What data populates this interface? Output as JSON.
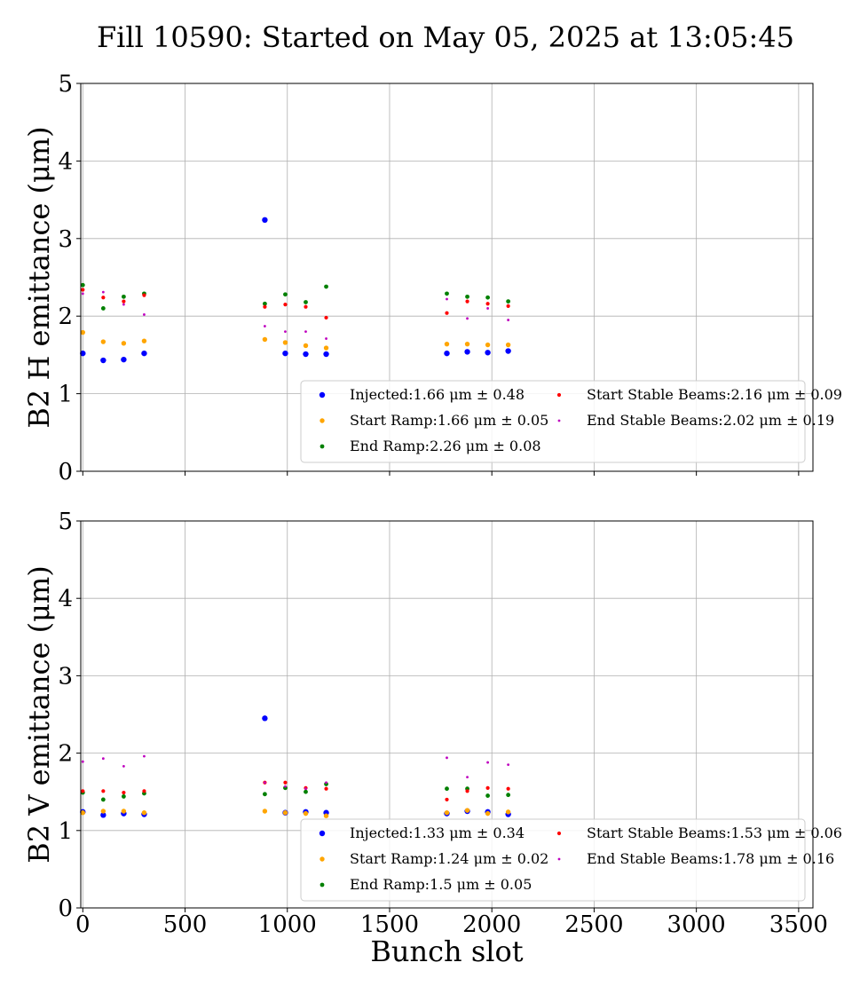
{
  "title": "Fill 10590: Started on May 05, 2025 at 13:05:45",
  "colors": {
    "Injected": "#0000ff",
    "Start Ramp": "#ffa500",
    "End Ramp": "#008000",
    "Start Stable Beams": "#ff0000",
    "End Stable Beams": "#bf00bf"
  },
  "chart_data": [
    {
      "type": "scatter",
      "ylabel": "B2 H emittance (μm)",
      "xlabel": "",
      "xlim": [
        -10,
        3570
      ],
      "ylim": [
        0,
        5
      ],
      "xticks": [
        0,
        500,
        1000,
        1500,
        2000,
        2500,
        3000,
        3500
      ],
      "yticks": [
        0,
        1,
        2,
        3,
        4,
        5
      ],
      "show_xtick_labels": false,
      "grid": true,
      "legend_placement": "lower-right",
      "series": [
        {
          "name": "Injected",
          "legend": "Injected:1.66 μm ± 0.48",
          "x": [
            0,
            100,
            200,
            300,
            890,
            990,
            1090,
            1190,
            1780,
            1880,
            1980,
            2080
          ],
          "y": [
            1.52,
            1.43,
            1.44,
            1.52,
            3.24,
            1.52,
            1.51,
            1.51,
            1.52,
            1.54,
            1.53,
            1.55
          ]
        },
        {
          "name": "Start Ramp",
          "legend": "Start Ramp:1.66 μm ± 0.05",
          "x": [
            0,
            100,
            200,
            300,
            890,
            990,
            1090,
            1190,
            1780,
            1880,
            1980,
            2080
          ],
          "y": [
            1.79,
            1.67,
            1.65,
            1.68,
            1.7,
            1.66,
            1.62,
            1.59,
            1.64,
            1.64,
            1.63,
            1.63
          ]
        },
        {
          "name": "End Ramp",
          "legend": "End Ramp:2.26 μm ± 0.08",
          "x": [
            0,
            100,
            200,
            300,
            890,
            990,
            1090,
            1190,
            1780,
            1880,
            1980,
            2080
          ],
          "y": [
            2.4,
            2.1,
            2.25,
            2.29,
            2.16,
            2.28,
            2.18,
            2.38,
            2.29,
            2.25,
            2.24,
            2.19
          ]
        },
        {
          "name": "Start Stable Beams",
          "legend": "Start Stable Beams:2.16 μm ± 0.09",
          "x": [
            0,
            100,
            200,
            300,
            890,
            990,
            1090,
            1190,
            1780,
            1880,
            1980,
            2080
          ],
          "y": [
            2.34,
            2.24,
            2.19,
            2.27,
            2.12,
            2.15,
            2.12,
            1.98,
            2.04,
            2.19,
            2.16,
            2.13
          ]
        },
        {
          "name": "End Stable Beams",
          "legend": "End Stable Beams:2.02 μm ± 0.19",
          "x": [
            0,
            100,
            200,
            300,
            890,
            990,
            1090,
            1190,
            1780,
            1880,
            1980,
            2080
          ],
          "y": [
            2.29,
            2.31,
            2.15,
            2.02,
            1.87,
            1.8,
            1.8,
            1.71,
            2.22,
            1.97,
            2.1,
            1.95
          ]
        }
      ]
    },
    {
      "type": "scatter",
      "ylabel": "B2 V emittance (μm)",
      "xlabel": "Bunch slot",
      "xlim": [
        -10,
        3570
      ],
      "ylim": [
        0,
        5
      ],
      "xticks": [
        0,
        500,
        1000,
        1500,
        2000,
        2500,
        3000,
        3500
      ],
      "yticks": [
        0,
        1,
        2,
        3,
        4,
        5
      ],
      "show_xtick_labels": true,
      "grid": true,
      "legend_placement": "lower-right",
      "series": [
        {
          "name": "Injected",
          "legend": "Injected:1.33 μm ± 0.34",
          "x": [
            0,
            100,
            200,
            300,
            890,
            990,
            1090,
            1190,
            1780,
            1880,
            1980,
            2080
          ],
          "y": [
            1.24,
            1.2,
            1.22,
            1.21,
            2.45,
            1.23,
            1.24,
            1.23,
            1.22,
            1.25,
            1.24,
            1.21
          ]
        },
        {
          "name": "Start Ramp",
          "legend": "Start Ramp:1.24 μm ± 0.02",
          "x": [
            0,
            100,
            200,
            300,
            890,
            990,
            1090,
            1190,
            1780,
            1880,
            1980,
            2080
          ],
          "y": [
            1.23,
            1.25,
            1.25,
            1.23,
            1.25,
            1.23,
            1.22,
            1.19,
            1.23,
            1.26,
            1.22,
            1.24
          ]
        },
        {
          "name": "End Ramp",
          "legend": "End Ramp:1.5 μm ± 0.05",
          "x": [
            0,
            100,
            200,
            300,
            890,
            990,
            1090,
            1190,
            1780,
            1880,
            1980,
            2080
          ],
          "y": [
            1.49,
            1.4,
            1.44,
            1.48,
            1.47,
            1.55,
            1.5,
            1.6,
            1.54,
            1.54,
            1.45,
            1.46
          ]
        },
        {
          "name": "Start Stable Beams",
          "legend": "Start Stable Beams:1.53 μm ± 0.06",
          "x": [
            0,
            100,
            200,
            300,
            890,
            990,
            1090,
            1190,
            1780,
            1880,
            1980,
            2080
          ],
          "y": [
            1.51,
            1.51,
            1.49,
            1.51,
            1.62,
            1.62,
            1.55,
            1.54,
            1.4,
            1.51,
            1.55,
            1.54
          ]
        },
        {
          "name": "End Stable Beams",
          "legend": "End Stable Beams:1.78 μm ± 0.16",
          "x": [
            0,
            100,
            200,
            300,
            890,
            990,
            1090,
            1190,
            1780,
            1880,
            1980,
            2080
          ],
          "y": [
            1.89,
            1.93,
            1.83,
            1.96,
            1.62,
            1.57,
            1.54,
            1.62,
            1.94,
            1.69,
            1.88,
            1.85
          ]
        }
      ]
    }
  ]
}
